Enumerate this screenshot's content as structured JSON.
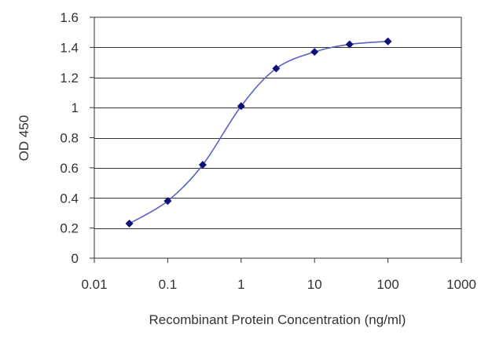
{
  "chart_data": {
    "type": "line",
    "title": "",
    "xlabel": "Recombinant Protein Concentration (ng/ml)",
    "ylabel": "OD 450",
    "x_scale": "log",
    "xlim": [
      0.01,
      1000
    ],
    "ylim": [
      0,
      1.6
    ],
    "x_ticks": [
      0.01,
      0.1,
      1,
      10,
      100,
      1000
    ],
    "x_tick_labels": [
      "0.01",
      "0.1",
      "1",
      "10",
      "100",
      "1000"
    ],
    "y_ticks": [
      0,
      0.2,
      0.4,
      0.6,
      0.8,
      1,
      1.2,
      1.4,
      1.6
    ],
    "y_tick_labels": [
      "0",
      "0.2",
      "0.4",
      "0.6",
      "0.8",
      "1",
      "1.2",
      "1.4",
      "1.6"
    ],
    "grid": "horizontal",
    "legend": "none",
    "series": [
      {
        "x": [
          0.03,
          0.1,
          0.3,
          1,
          3,
          10,
          30,
          100
        ],
        "values": [
          0.23,
          0.38,
          0.62,
          1.01,
          1.26,
          1.37,
          1.42,
          1.44
        ]
      }
    ],
    "colors": {
      "line": "#5a5fc8",
      "marker": "#10107a",
      "grid": "#333333",
      "frame": "#333333",
      "text": "#333333"
    }
  }
}
